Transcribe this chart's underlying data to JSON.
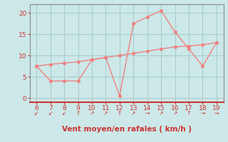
{
  "xlabel": "Vent moyen/en rafales ( km/h )",
  "bg_color": "#cce8e8",
  "grid_color": "#aacccc",
  "line_color": "#f08080",
  "x_ticks": [
    6,
    7,
    8,
    9,
    10,
    11,
    12,
    13,
    14,
    15,
    16,
    17,
    18,
    19
  ],
  "ylim": [
    -1,
    22
  ],
  "xlim": [
    5.5,
    19.5
  ],
  "series1_x": [
    6,
    7,
    8,
    9,
    10,
    11,
    12,
    13,
    14,
    15,
    16,
    17,
    18,
    19
  ],
  "series1_y": [
    7.5,
    4.0,
    4.0,
    4.0,
    9.0,
    9.5,
    0.5,
    17.5,
    19.0,
    20.5,
    15.5,
    11.5,
    7.5,
    13.0
  ],
  "series2_x": [
    6,
    7,
    8,
    9,
    10,
    11,
    12,
    13,
    14,
    15,
    16,
    17,
    18,
    19
  ],
  "series2_y": [
    7.5,
    7.9,
    8.2,
    8.5,
    9.0,
    9.5,
    10.0,
    10.5,
    11.0,
    11.5,
    12.0,
    12.2,
    12.5,
    13.0
  ],
  "arrow_syms": [
    "↙",
    "↙",
    "↙",
    "⇑",
    "↗",
    "↗",
    "⇑",
    "↗",
    "→",
    "↗",
    "↗",
    "↑",
    "→",
    "→"
  ],
  "yticks": [
    0,
    5,
    10,
    15,
    20
  ],
  "font_color": "#cc3333",
  "axis_color": "#888888",
  "xlabel_fontsize": 7.5,
  "tick_fontsize": 6.5,
  "arrow_fontsize": 5.5,
  "line_width": 1.0,
  "marker_size": 2.5
}
